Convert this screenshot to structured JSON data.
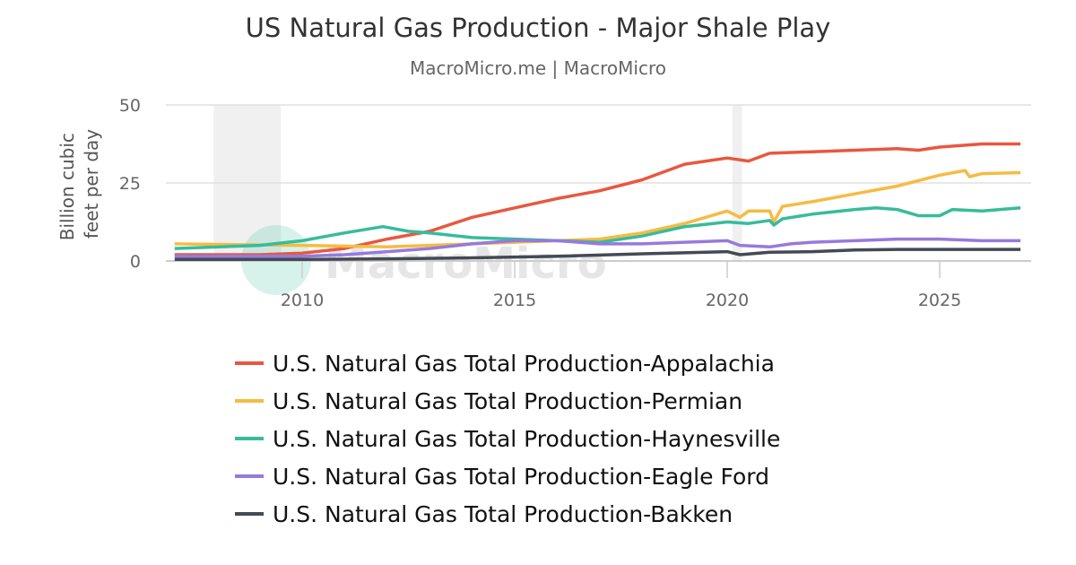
{
  "chart_data": {
    "type": "line",
    "title": "US Natural Gas Production - Major Shale Play",
    "subtitle": "MacroMicro.me | MacroMicro",
    "ylabel": "Billion cubic feet per day",
    "xlabel": "",
    "ylim": [
      0,
      50
    ],
    "yticks": [
      "0",
      "25",
      "50"
    ],
    "xlim": [
      2007.0,
      2026.9
    ],
    "xticks": [
      "2010",
      "2015",
      "2020",
      "2025"
    ],
    "grid": true,
    "legend_position": "bottom",
    "watermark": "MacroMicro",
    "recessions": [
      [
        2007.92,
        2009.5
      ],
      [
        2020.12,
        2020.35
      ]
    ],
    "series": [
      {
        "name": "U.S. Natural Gas Total Production-Appalachia",
        "color": "#e9573f",
        "x": [
          2007,
          2008,
          2009,
          2010,
          2011,
          2012,
          2013,
          2014,
          2015,
          2016,
          2017,
          2018,
          2019,
          2020,
          2020.5,
          2021,
          2022,
          2023,
          2024,
          2024.5,
          2025,
          2026,
          2026.9
        ],
        "y": [
          2,
          2,
          2,
          2.5,
          4,
          7,
          9.5,
          14,
          17,
          20,
          22.5,
          26,
          31,
          33,
          32,
          34.5,
          35,
          35.5,
          36,
          35.5,
          36.5,
          37.5,
          37.5
        ]
      },
      {
        "name": "U.S. Natural Gas Total Production-Permian",
        "color": "#f6bb42",
        "x": [
          2007,
          2010,
          2012,
          2014,
          2016,
          2017,
          2018,
          2019,
          2020,
          2020.3,
          2020.5,
          2021,
          2021.1,
          2021.3,
          2022,
          2023,
          2024,
          2025,
          2025.6,
          2025.7,
          2026,
          2026.9
        ],
        "y": [
          5.5,
          5,
          4.5,
          5.5,
          6.5,
          7,
          9,
          12,
          16,
          14,
          16,
          16,
          12.5,
          17.5,
          19,
          21.5,
          24,
          27.5,
          29,
          27,
          28,
          28.3
        ]
      },
      {
        "name": "U.S. Natural Gas Total Production-Haynesville",
        "color": "#37bc9b",
        "x": [
          2007,
          2009,
          2010,
          2011,
          2011.9,
          2012.5,
          2013,
          2014,
          2015,
          2016,
          2017,
          2018,
          2019,
          2020,
          2020.5,
          2021,
          2021.1,
          2021.3,
          2022,
          2023,
          2023.5,
          2024,
          2024.5,
          2025,
          2025.3,
          2026,
          2026.9
        ],
        "y": [
          4,
          5,
          6.5,
          9,
          11,
          9.5,
          9,
          7.5,
          7,
          6.5,
          6,
          8,
          11,
          12.5,
          12,
          13,
          11.5,
          13.5,
          15,
          16.5,
          17,
          16.5,
          14.5,
          14.5,
          16.5,
          16,
          17
        ]
      },
      {
        "name": "U.S. Natural Gas Total Production-Eagle Ford",
        "color": "#967adc",
        "x": [
          2007,
          2009,
          2010,
          2011,
          2012,
          2013,
          2014,
          2015,
          2016,
          2017,
          2018,
          2019,
          2020,
          2020.3,
          2021,
          2021.5,
          2022,
          2023,
          2024,
          2025,
          2026,
          2026.9
        ],
        "y": [
          1.5,
          1.5,
          1.5,
          2,
          3,
          4,
          5.5,
          6.5,
          6.5,
          5.5,
          5.5,
          6,
          6.5,
          5,
          4.5,
          5.5,
          6,
          6.5,
          7,
          7,
          6.5,
          6.5
        ]
      },
      {
        "name": "U.S. Natural Gas Total Production-Bakken",
        "color": "#434a54",
        "x": [
          2007,
          2010,
          2012,
          2014,
          2016,
          2018,
          2020,
          2020.3,
          2021,
          2022,
          2023,
          2024,
          2025,
          2026.9
        ],
        "y": [
          0.5,
          0.5,
          0.7,
          1,
          1.5,
          2.3,
          3,
          2,
          2.8,
          3,
          3.5,
          3.7,
          3.7,
          3.7
        ]
      }
    ]
  }
}
